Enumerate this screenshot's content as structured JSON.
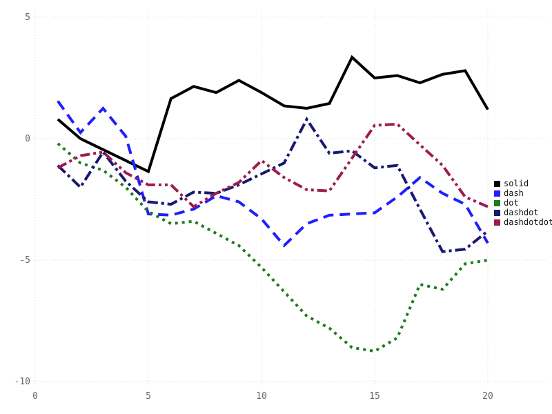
{
  "figure": {
    "background": "#ffffff",
    "grid_color": "#d9d9d9",
    "tick_label_color": "#666666"
  },
  "chart_data": {
    "type": "line",
    "title": "",
    "xlabel": "",
    "ylabel": "",
    "grid": true,
    "legend_position": "right",
    "xlim": [
      0,
      20
    ],
    "ylim": [
      -10,
      5
    ],
    "x_ticks": [
      0,
      5,
      10,
      15,
      20
    ],
    "y_ticks": [
      -10,
      -5,
      0,
      5
    ],
    "x": [
      1,
      2,
      3,
      4,
      5,
      6,
      7,
      8,
      9,
      10,
      11,
      12,
      13,
      14,
      15,
      16,
      17,
      18,
      19,
      20
    ],
    "series": [
      {
        "name": "solid",
        "color": "#000000",
        "line_style": "solid",
        "values": [
          0.8,
          0.0,
          -0.45,
          -0.9,
          -1.35,
          1.65,
          2.15,
          1.9,
          2.4,
          1.9,
          1.35,
          1.25,
          1.45,
          3.35,
          2.5,
          2.6,
          2.3,
          2.65,
          2.8,
          1.2
        ]
      },
      {
        "name": "dash",
        "color": "#1f1fff",
        "line_style": "dash",
        "values": [
          1.55,
          0.25,
          1.25,
          0.1,
          -3.1,
          -3.15,
          -2.9,
          -2.35,
          -2.6,
          -3.3,
          -4.4,
          -3.5,
          -3.15,
          -3.1,
          -3.05,
          -2.4,
          -1.6,
          -2.25,
          -2.7,
          -4.3
        ]
      },
      {
        "name": "dot",
        "color": "#1e7b1e",
        "line_style": "dot",
        "values": [
          -0.2,
          -1.0,
          -1.3,
          -2.0,
          -3.0,
          -3.5,
          -3.4,
          -3.9,
          -4.4,
          -5.3,
          -6.3,
          -7.3,
          -7.8,
          -8.6,
          -8.75,
          -8.2,
          -6.0,
          -6.2,
          -5.15,
          -5.0
        ]
      },
      {
        "name": "dashdot",
        "color": "#191970",
        "line_style": "dashdot",
        "values": [
          -1.1,
          -2.0,
          -0.55,
          -1.75,
          -2.6,
          -2.7,
          -2.2,
          -2.25,
          -1.9,
          -1.45,
          -1.0,
          0.8,
          -0.6,
          -0.5,
          -1.2,
          -1.1,
          -2.9,
          -4.65,
          -4.55,
          -3.8
        ]
      },
      {
        "name": "dashdotdot",
        "color": "#9e1b50",
        "line_style": "dashdotdot",
        "values": [
          -1.2,
          -0.7,
          -0.55,
          -1.4,
          -1.9,
          -1.9,
          -2.8,
          -2.25,
          -1.8,
          -0.9,
          -1.6,
          -2.1,
          -2.15,
          -0.8,
          0.55,
          0.6,
          -0.25,
          -1.1,
          -2.4,
          -2.8
        ]
      }
    ]
  }
}
